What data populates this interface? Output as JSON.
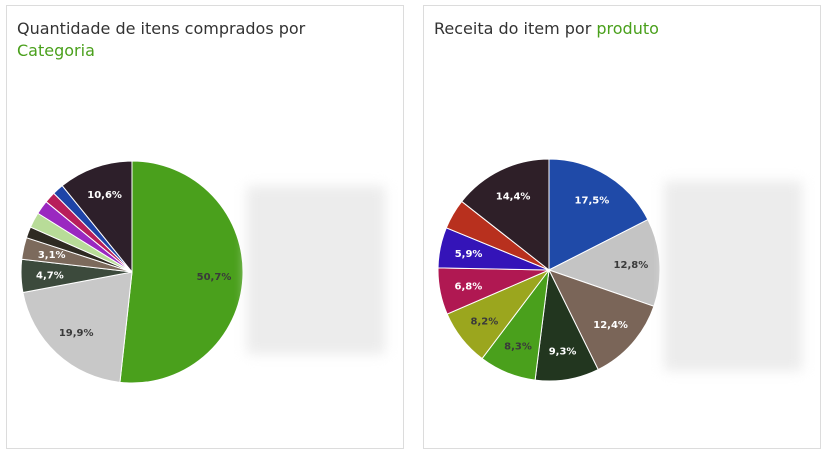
{
  "colors": {
    "accent": "#4aa01c",
    "title_text": "#333333"
  },
  "chart_data": [
    {
      "type": "pie",
      "title_prefix": "Quantidade de itens comprados por ",
      "title_highlight": "Categoria",
      "slices": [
        {
          "value": 50.7,
          "label": "50,7%",
          "color": "#4aa01c",
          "label_color": "#3a3a3a"
        },
        {
          "value": 19.9,
          "label": "19,9%",
          "color": "#c8c8c8",
          "label_color": "#3a3a3a"
        },
        {
          "value": 4.7,
          "label": "4,7%",
          "color": "#3c4a3c",
          "label_color": "#ffffff"
        },
        {
          "value": 3.1,
          "label": "3,1%",
          "color": "#7c6a5c",
          "label_color": "#ffffff"
        },
        {
          "value": 1.6,
          "label": "",
          "color": "#2e2a22",
          "label_color": "#ffffff"
        },
        {
          "value": 2.2,
          "label": "",
          "color": "#b8dc98",
          "label_color": "#ffffff"
        },
        {
          "value": 2.0,
          "label": "",
          "color": "#9a28c0",
          "label_color": "#ffffff"
        },
        {
          "value": 1.6,
          "label": "",
          "color": "#b81e5a",
          "label_color": "#ffffff"
        },
        {
          "value": 1.6,
          "label": "",
          "color": "#1e44a8",
          "label_color": "#ffffff"
        },
        {
          "value": 10.6,
          "label": "10,6%",
          "color": "#2d1f2a",
          "label_color": "#ffffff"
        }
      ]
    },
    {
      "type": "pie",
      "title_prefix": "Receita do item por ",
      "title_highlight": "produto",
      "slices": [
        {
          "value": 17.5,
          "label": "17,5%",
          "color": "#1f4aa8",
          "label_color": "#ffffff"
        },
        {
          "value": 12.8,
          "label": "12,8%",
          "color": "#c4c4c4",
          "label_color": "#3a3a3a"
        },
        {
          "value": 12.4,
          "label": "12,4%",
          "color": "#7a6558",
          "label_color": "#ffffff"
        },
        {
          "value": 9.3,
          "label": "9,3%",
          "color": "#22361f",
          "label_color": "#ffffff"
        },
        {
          "value": 8.3,
          "label": "8,3%",
          "color": "#4aa01c",
          "label_color": "#3a3a3a"
        },
        {
          "value": 8.2,
          "label": "8,2%",
          "color": "#9ba61e",
          "label_color": "#3a3a3a"
        },
        {
          "value": 6.8,
          "label": "6,8%",
          "color": "#b01852",
          "label_color": "#ffffff"
        },
        {
          "value": 5.9,
          "label": "5,9%",
          "color": "#3414b8",
          "label_color": "#ffffff"
        },
        {
          "value": 4.4,
          "label": "",
          "color": "#b8301e",
          "label_color": "#ffffff"
        },
        {
          "value": 14.4,
          "label": "14,4%",
          "color": "#2e1f28",
          "label_color": "#ffffff"
        }
      ]
    }
  ]
}
